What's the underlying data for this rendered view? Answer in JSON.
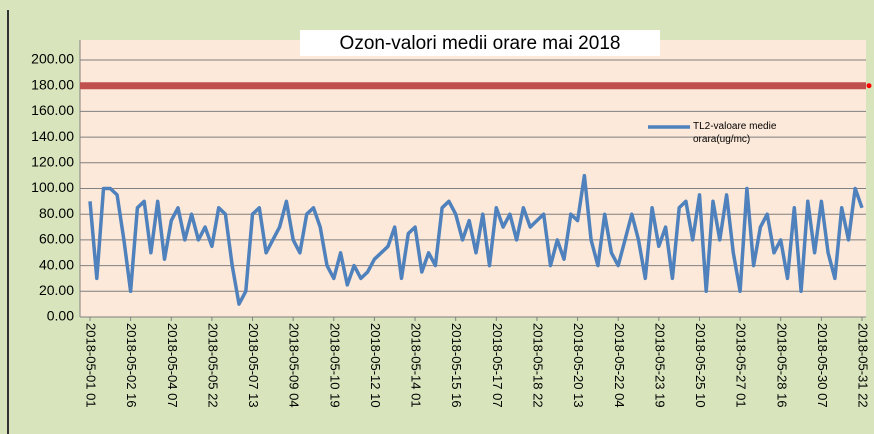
{
  "chart_data": {
    "type": "line",
    "title": "Ozon-valori medii orare  mai 2018",
    "categories": [
      "2018-05-01 01",
      null,
      null,
      null,
      null,
      null,
      "2018-05-02 16",
      null,
      null,
      null,
      null,
      null,
      "2018-05-04 07",
      null,
      null,
      null,
      null,
      null,
      "2018-05-05 22",
      null,
      null,
      null,
      null,
      null,
      "2018-05-07 13",
      null,
      null,
      null,
      null,
      null,
      "2018-05-09 04",
      null,
      null,
      null,
      null,
      null,
      "2018-05-10 19",
      null,
      null,
      null,
      null,
      null,
      "2018-05-12 10",
      null,
      null,
      null,
      null,
      null,
      "2018-05-14 01",
      null,
      null,
      null,
      null,
      null,
      "2018-05-15 16",
      null,
      null,
      null,
      null,
      null,
      "2018-05-17 07",
      null,
      null,
      null,
      null,
      null,
      "2018-05-18 22",
      null,
      null,
      null,
      null,
      null,
      "2018-05-20 13",
      null,
      null,
      null,
      null,
      null,
      "2018-05-22 04",
      null,
      null,
      null,
      null,
      null,
      "2018-05-23 19",
      null,
      null,
      null,
      null,
      null,
      "2018-05-25 10",
      null,
      null,
      null,
      null,
      null,
      "2018-05-27 01",
      null,
      null,
      null,
      null,
      null,
      "2018-05-28 16",
      null,
      null,
      null,
      null,
      null,
      "2018-05-30 07",
      null,
      null,
      null,
      null,
      null,
      "2018-05-31 22"
    ],
    "series": [
      {
        "name": "TL2-valoare medie orara(ug/mc)",
        "color": "#4f81bd",
        "values": [
          90,
          30,
          100,
          100,
          95,
          60,
          20,
          85,
          90,
          50,
          90,
          45,
          75,
          85,
          60,
          80,
          60,
          70,
          55,
          85,
          80,
          40,
          10,
          20,
          80,
          85,
          50,
          60,
          70,
          90,
          60,
          50,
          80,
          85,
          70,
          40,
          30,
          50,
          25,
          40,
          30,
          35,
          45,
          50,
          55,
          70,
          30,
          65,
          70,
          35,
          50,
          40,
          85,
          90,
          80,
          60,
          75,
          50,
          80,
          40,
          85,
          70,
          80,
          60,
          85,
          70,
          75,
          80,
          40,
          60,
          45,
          80,
          75,
          110,
          60,
          40,
          80,
          50,
          40,
          60,
          80,
          60,
          30,
          85,
          55,
          70,
          30,
          85,
          90,
          60,
          95,
          20,
          90,
          60,
          95,
          50,
          20,
          100,
          40,
          70,
          80,
          50,
          60,
          30,
          85,
          20,
          90,
          50,
          90,
          50,
          30,
          85,
          60,
          100,
          85
        ]
      }
    ],
    "threshold": {
      "value": 180,
      "color": "#c0504d"
    },
    "ylim": [
      0,
      200
    ],
    "yticks": [
      {
        "value": 0,
        "label": "0.00"
      },
      {
        "value": 20,
        "label": "20.00"
      },
      {
        "value": 40,
        "label": "40.00"
      },
      {
        "value": 60,
        "label": "60.00"
      },
      {
        "value": 80,
        "label": "80.00"
      },
      {
        "value": 100,
        "label": "100.00"
      },
      {
        "value": 120,
        "label": "120.00"
      },
      {
        "value": 140,
        "label": "140.00"
      },
      {
        "value": 160,
        "label": "160.00"
      },
      {
        "value": 180,
        "label": "180.00"
      },
      {
        "value": 200,
        "label": "200.00"
      }
    ],
    "grid": true
  }
}
